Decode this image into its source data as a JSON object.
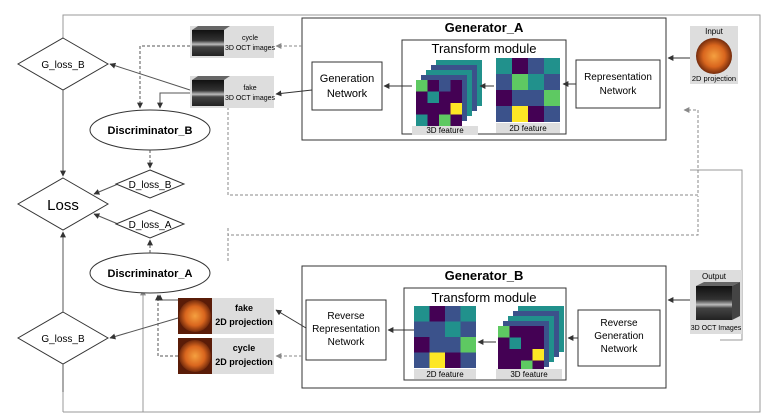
{
  "generator_a": {
    "title": "Generator_A",
    "transform_title": "Transform module",
    "representation_line1": "Representation",
    "representation_line2": "Network",
    "generation_line1": "Generation",
    "generation_line2": "Network",
    "feature3d_label": "3D feature",
    "feature2d_label": "2D feature"
  },
  "generator_b": {
    "title": "Generator_B",
    "transform_title": "Transform module",
    "reverse_generation_line1": "Reverse",
    "reverse_generation_line2": "Generation",
    "reverse_generation_line3": "Network",
    "reverse_representation_line1": "Reverse",
    "reverse_representation_line2": "Representation",
    "reverse_representation_line3": "Network",
    "feature2d_label": "2D feature",
    "feature3d_label": "3D feature"
  },
  "io": {
    "input_label": "Input",
    "input_caption": "2D projection",
    "output_label": "Output",
    "output_caption": "3D OCT  Images"
  },
  "images_a": {
    "cycle_line1": "cycle",
    "cycle_line2": "3D OCT images",
    "fake_line1": "fake",
    "fake_line2": "3D OCT images"
  },
  "images_b": {
    "fake_line1": "fake",
    "fake_line2": "2D projection",
    "cycle_line1": "cycle",
    "cycle_line2": "2D projection"
  },
  "nodes": {
    "discriminator_b": "Discriminator_B",
    "discriminator_a": "Discriminator_A",
    "loss": "Loss",
    "g_loss_b_top": "G_loss_B",
    "g_loss_b_bottom": "G_loss_B",
    "d_loss_b": "D_loss_B",
    "d_loss_a": "D_loss_A"
  },
  "colors": {
    "viridis_dark": "#440154",
    "viridis_blue": "#3b528b",
    "viridis_teal": "#21918c",
    "viridis_green": "#5ec962",
    "viridis_yellow": "#fde725",
    "retina_orange": "#d9661e",
    "connector_gray": "#999999"
  }
}
